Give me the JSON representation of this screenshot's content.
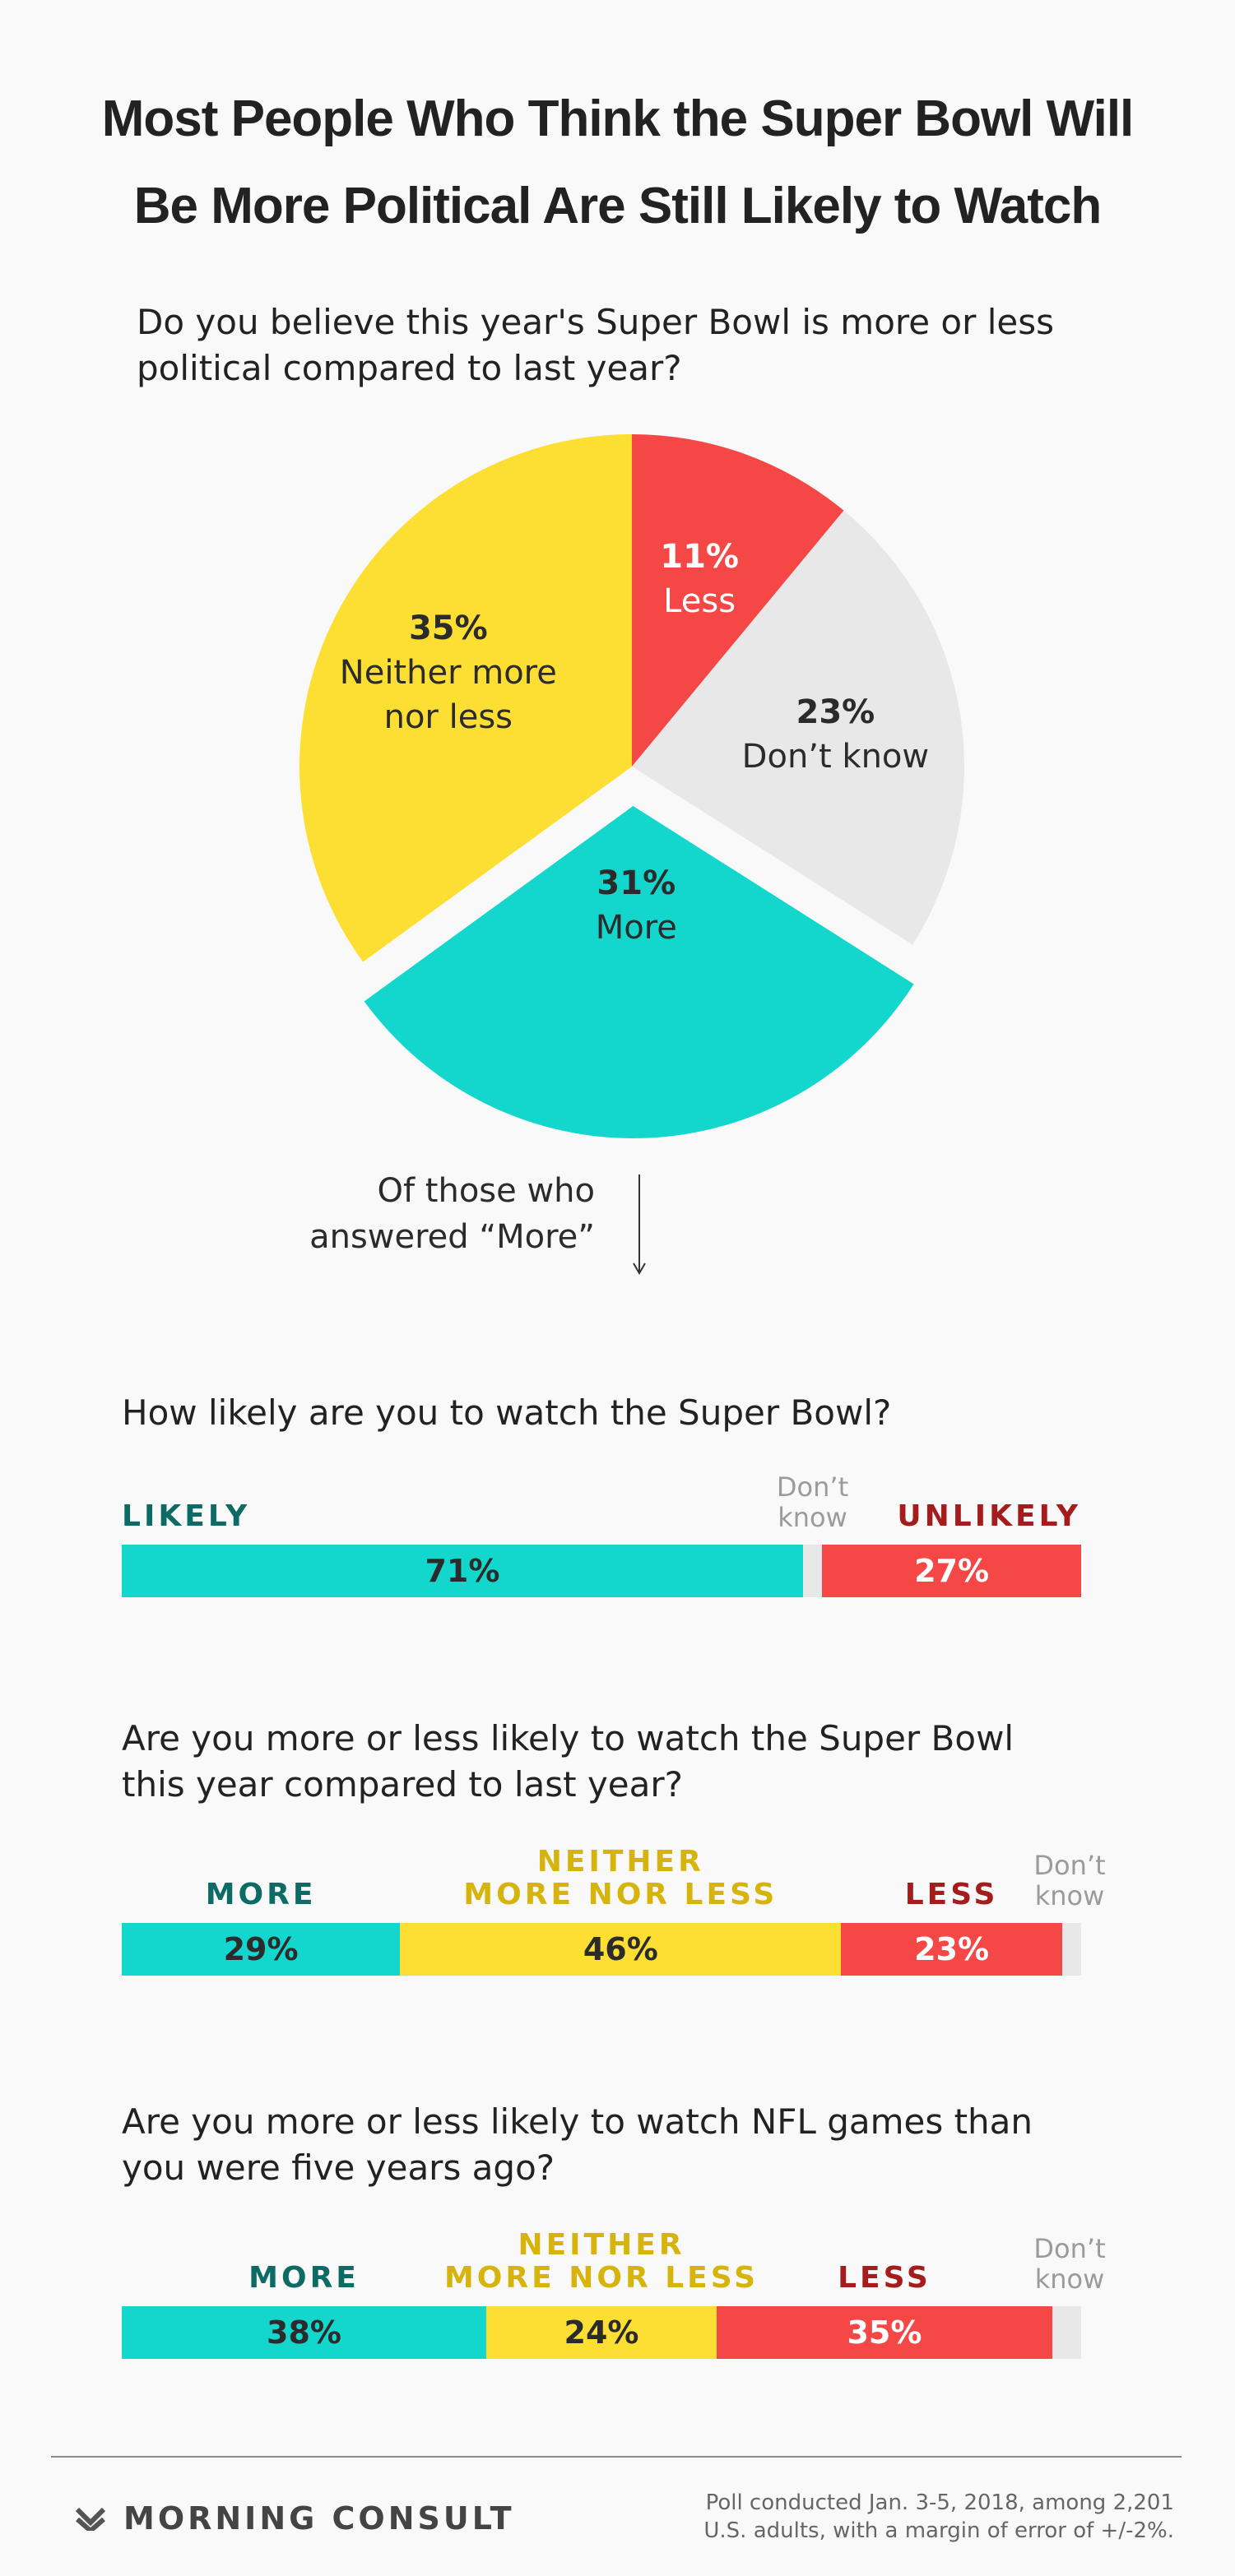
{
  "title_line1": "Most People Who Think the Super Bowl Will",
  "title_line2": "Be More Political Are Still Likely to Watch",
  "pie_question": "Do you believe this year's Super Bowl is more or less political compared to last year?",
  "note": "Of those who\nanswered “More”",
  "colors": {
    "more": "#13d6cc",
    "neither": "#fcdf32",
    "less": "#f64747",
    "dontknow": "#e8e8e8",
    "teal_text": "#0d6b66",
    "yellow_text": "#d6b40c",
    "red_text": "#a51c1c"
  },
  "chart_data": [
    {
      "type": "pie",
      "title": "Do you believe this year's Super Bowl is more or less political compared to last year?",
      "slices": [
        {
          "key": "less",
          "pct_label": "11%",
          "name": "Less",
          "value": 11,
          "color": "#f64747"
        },
        {
          "key": "dontknow",
          "pct_label": "23%",
          "name": "Don’t know",
          "value": 23,
          "color": "#e8e8e8"
        },
        {
          "key": "more",
          "pct_label": "31%",
          "name": "More",
          "value": 31,
          "color": "#13d6cc",
          "exploded": true
        },
        {
          "key": "neither",
          "pct_label": "35%",
          "name": "Neither more\nnor less",
          "value": 35,
          "color": "#fcdf32"
        }
      ]
    },
    {
      "type": "bar",
      "title": "How likely are you to watch the Super Bowl?",
      "segments": [
        {
          "label": "LIKELY",
          "value": 71,
          "text": "71%",
          "color": "#13d6cc"
        },
        {
          "label": "Don’t\nknow",
          "value": 2,
          "text": "",
          "color": "#e8e8e8"
        },
        {
          "label": "UNLIKELY",
          "value": 27,
          "text": "27%",
          "color": "#f64747"
        }
      ]
    },
    {
      "type": "bar",
      "title": "Are you more or less likely to watch the Super Bowl this year compared to last year?",
      "segments": [
        {
          "label": "MORE",
          "value": 29,
          "text": "29%",
          "color": "#13d6cc"
        },
        {
          "label": "NEITHER\nMORE NOR LESS",
          "value": 46,
          "text": "46%",
          "color": "#fcdf32"
        },
        {
          "label": "LESS",
          "value": 23,
          "text": "23%",
          "color": "#f64747"
        },
        {
          "label": "Don’t\nknow",
          "value": 2,
          "text": "",
          "color": "#e8e8e8"
        }
      ]
    },
    {
      "type": "bar",
      "title": "Are you more or less likely to watch NFL games than you were five years ago?",
      "segments": [
        {
          "label": "MORE",
          "value": 38,
          "text": "38%",
          "color": "#13d6cc"
        },
        {
          "label": "NEITHER\nMORE NOR LESS",
          "value": 24,
          "text": "24%",
          "color": "#fcdf32"
        },
        {
          "label": "LESS",
          "value": 35,
          "text": "35%",
          "color": "#f64747"
        },
        {
          "label": "Don’t\nknow",
          "value": 3,
          "text": "",
          "color": "#e8e8e8"
        }
      ]
    }
  ],
  "footer": {
    "brand": "MORNING CONSULT",
    "logo_icon": "morning-consult-logo-icon",
    "source": "Poll conducted Jan. 3-5, 2018, among 2,201\nU.S. adults, with a margin of error of +/-2%."
  }
}
